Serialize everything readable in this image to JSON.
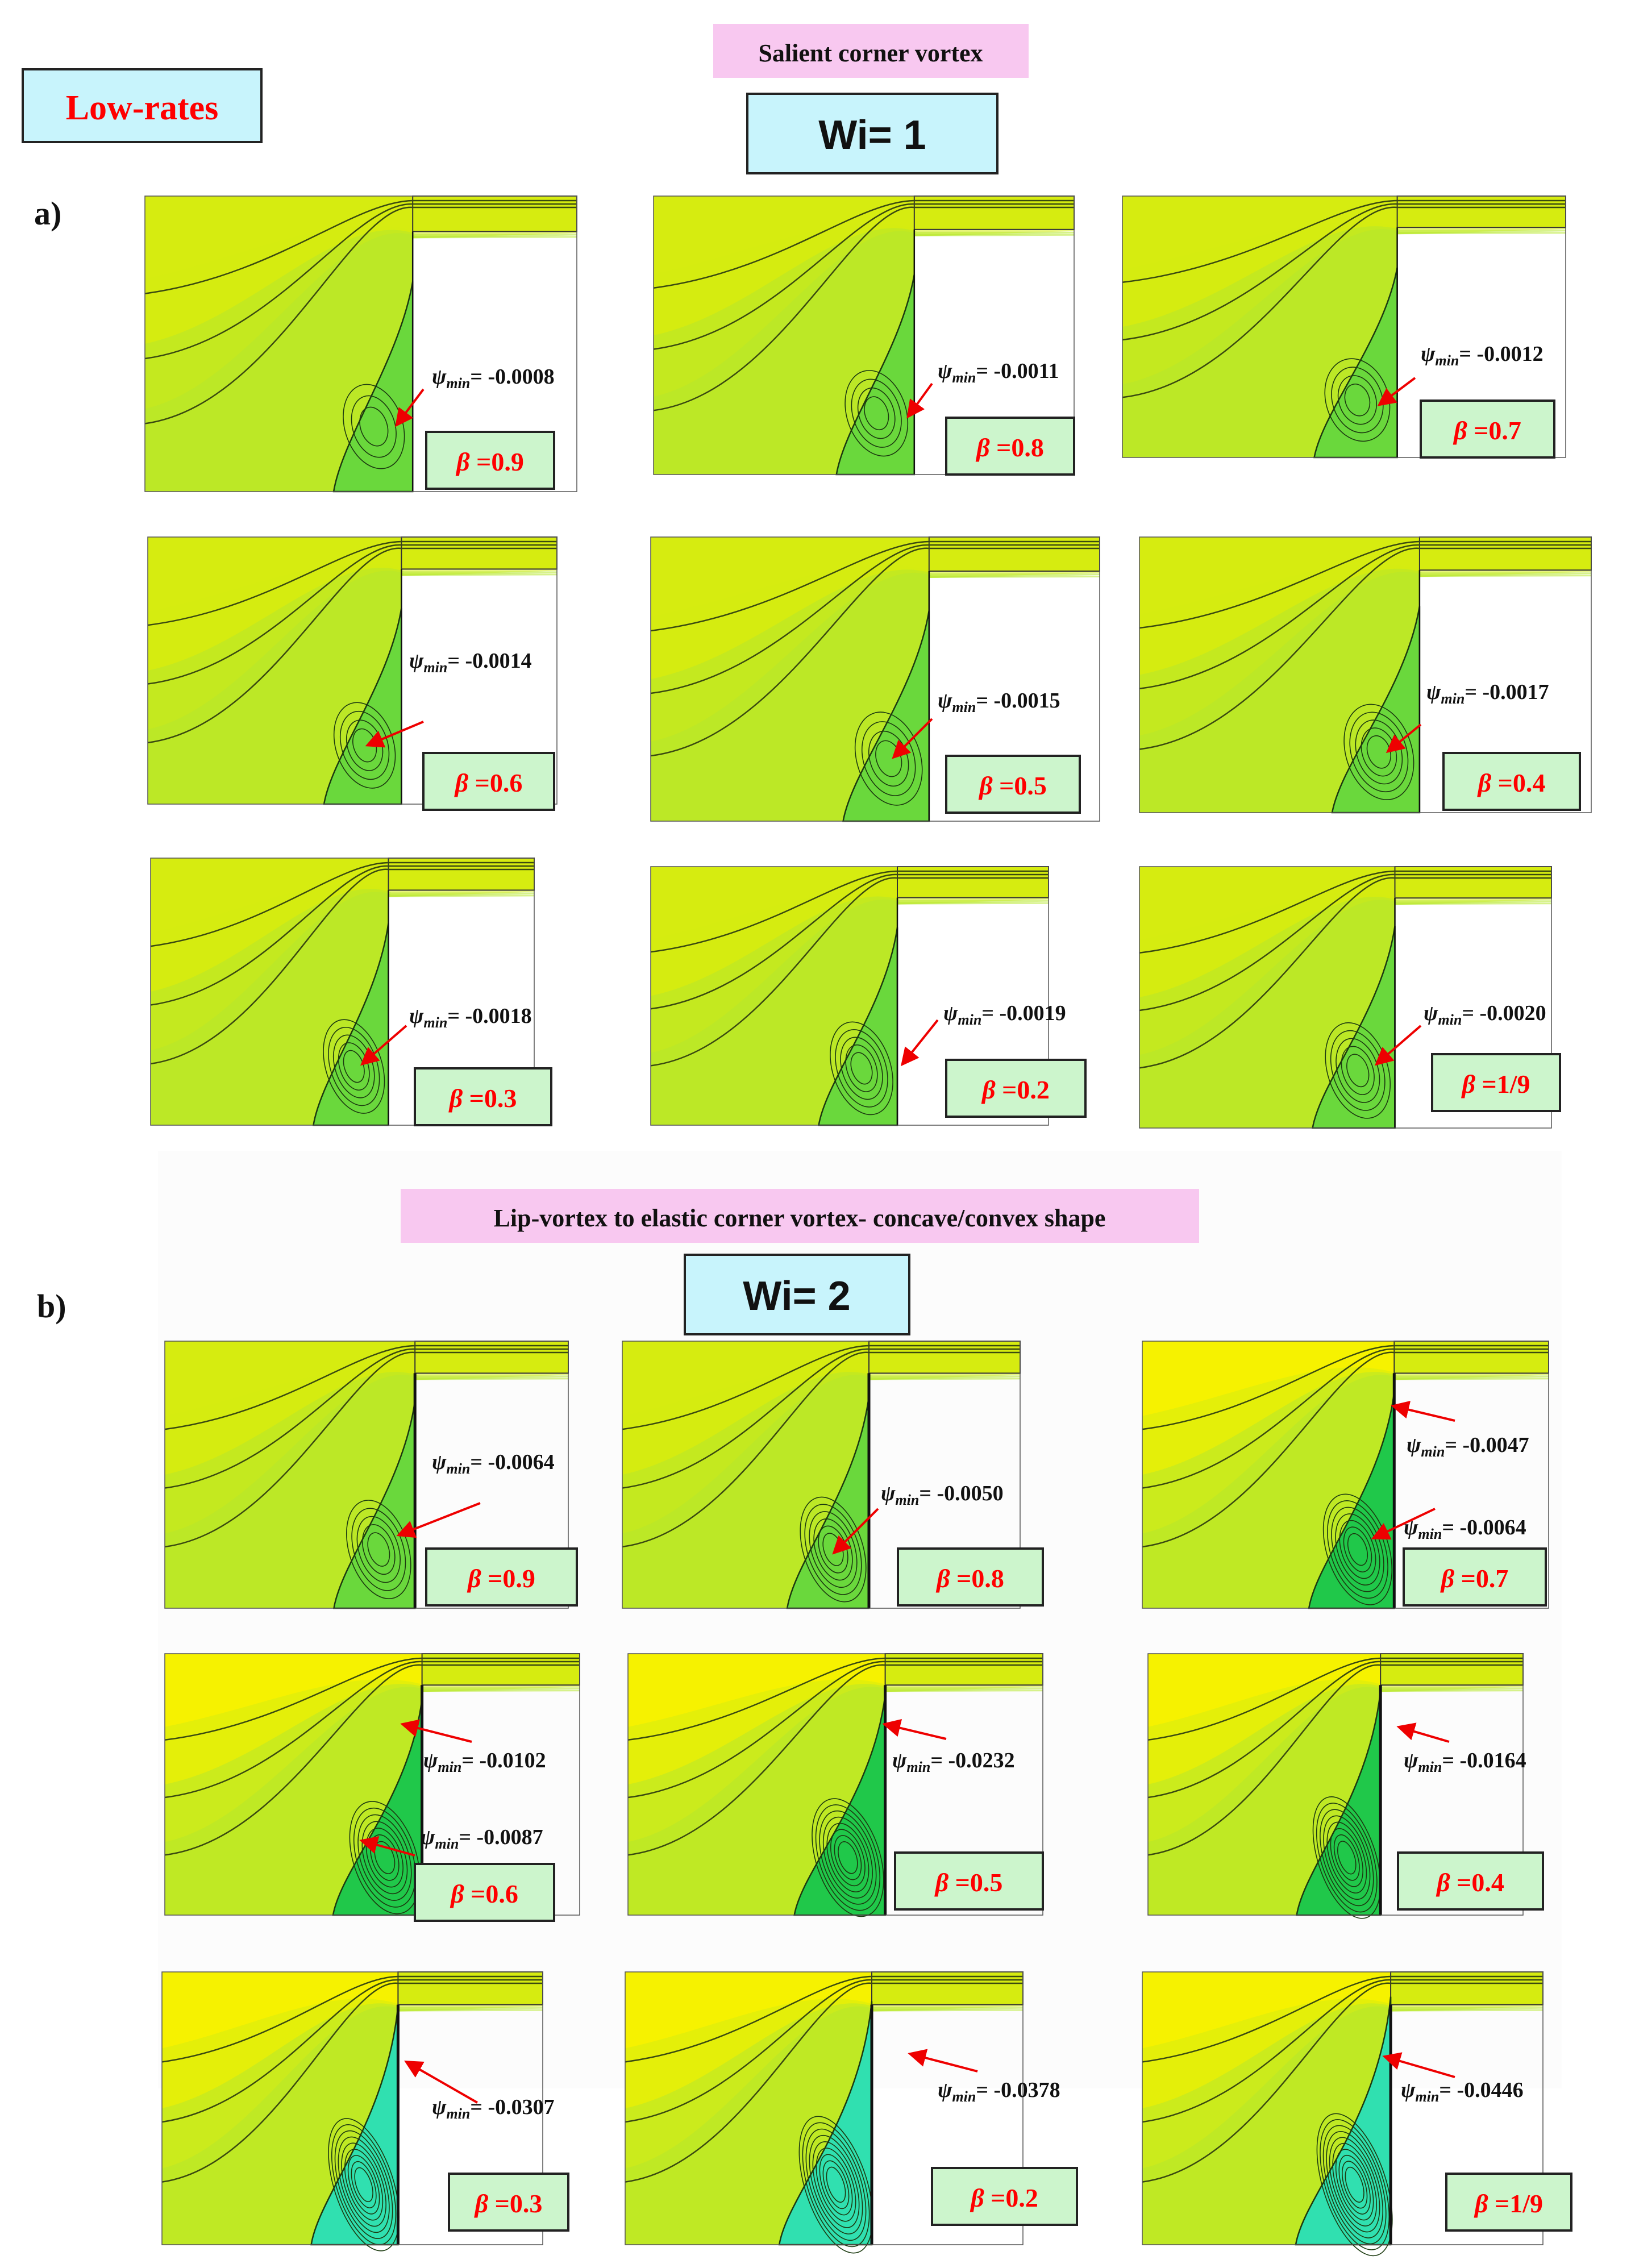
{
  "header": {
    "low_rates_label": "Low-rates",
    "low_rates_color": "#ff0000"
  },
  "section_a": {
    "panel_letter": "a)",
    "title": "Salient corner vortex",
    "wi_label": "Wi= 1",
    "panels": [
      {
        "psi": "= -0.0008",
        "beta": "=0.9"
      },
      {
        "psi": "= -0.0011",
        "beta": "=0.8"
      },
      {
        "psi": "= -0.0012",
        "beta": "=0.7"
      },
      {
        "psi": "= -0.0014",
        "beta": "=0.6"
      },
      {
        "psi": "= -0.0015",
        "beta": "=0.5"
      },
      {
        "psi": "= -0.0017",
        "beta": "=0.4"
      },
      {
        "psi": "= -0.0018",
        "beta": "=0.3"
      },
      {
        "psi": "= -0.0019",
        "beta": "=0.2"
      },
      {
        "psi": "= -0.0020",
        "beta": "=1/9"
      }
    ]
  },
  "section_b": {
    "panel_letter": "b)",
    "title": "Lip-vortex to elastic corner vortex- concave/convex shape",
    "wi_label": "Wi= 2",
    "panels": [
      {
        "psi": [
          "= -0.0064"
        ],
        "beta": "=0.9"
      },
      {
        "psi": [
          "= -0.0050"
        ],
        "beta": "=0.8"
      },
      {
        "psi": [
          "= -0.0047",
          "= -0.0064"
        ],
        "beta": "=0.7"
      },
      {
        "psi": [
          "= -0.0102",
          "= -0.0087"
        ],
        "beta": "=0.6"
      },
      {
        "psi": [
          "= -0.0232"
        ],
        "beta": "=0.5"
      },
      {
        "psi": [
          "= -0.0164"
        ],
        "beta": "=0.4"
      },
      {
        "psi": [
          "= -0.0307"
        ],
        "beta": "=0.3"
      },
      {
        "psi": [
          "= -0.0378"
        ],
        "beta": "=0.2"
      },
      {
        "psi": [
          "= -0.0446"
        ],
        "beta": "=1/9"
      }
    ]
  },
  "symbols": {
    "psi": "ψ",
    "psi_sub": "min",
    "beta": "β"
  },
  "colors": {
    "title_bg": "#f8c8f0",
    "wi_bg": "#c8f4fc",
    "beta_bg": "#ccf5cc",
    "beta_text": "#ff0000",
    "arrow": "#ee0000",
    "yellow": "#f6f200",
    "yellow_green": "#d6ec10",
    "light_green": "#b6e82c",
    "green": "#6ad83c",
    "deep_green": "#20c84a",
    "teal": "#30e0b0"
  }
}
